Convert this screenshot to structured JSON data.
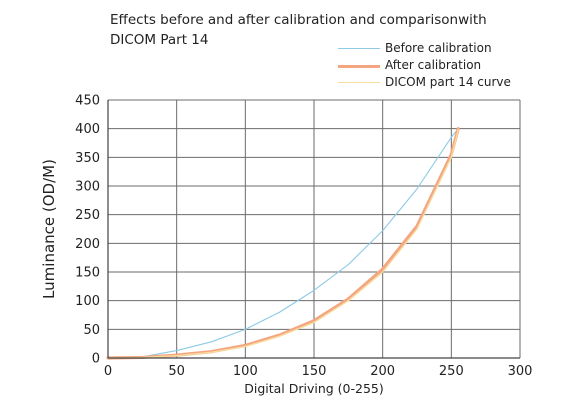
{
  "chart_data": {
    "type": "line",
    "title_lines": [
      "Effects before and after calibration and comparisonwith",
      "DICOM Part 14"
    ],
    "xlabel": "Digital Driving (0-255)",
    "ylabel": "Luminance (OD/M)",
    "xlim": [
      0,
      300
    ],
    "ylim": [
      0,
      450
    ],
    "xticks": [
      0,
      50,
      100,
      150,
      200,
      250,
      300
    ],
    "yticks": [
      0,
      50,
      100,
      150,
      200,
      250,
      300,
      350,
      400,
      450
    ],
    "grid": true,
    "legend_position": "top-right",
    "series": [
      {
        "name": "Before calibration",
        "color": "#8ecae6",
        "x": [
          0,
          25,
          50,
          75,
          100,
          125,
          150,
          175,
          200,
          225,
          250,
          255
        ],
        "y": [
          0,
          2,
          13,
          28,
          50,
          80,
          118,
          163,
          222,
          295,
          385,
          400
        ]
      },
      {
        "name": "After calibration",
        "color": "#f4a582",
        "x": [
          0,
          25,
          50,
          75,
          100,
          125,
          150,
          175,
          200,
          225,
          250,
          255
        ],
        "y": [
          0,
          1,
          5,
          11,
          22,
          40,
          65,
          103,
          155,
          230,
          355,
          400
        ]
      },
      {
        "name": "DICOM part 14 curve",
        "color": "#f7dc9c",
        "x": [
          0,
          25,
          50,
          75,
          100,
          125,
          150,
          175,
          200,
          225,
          250,
          255
        ],
        "y": [
          0,
          1,
          4,
          10,
          20,
          38,
          62,
          100,
          150,
          225,
          350,
          398
        ]
      }
    ]
  }
}
